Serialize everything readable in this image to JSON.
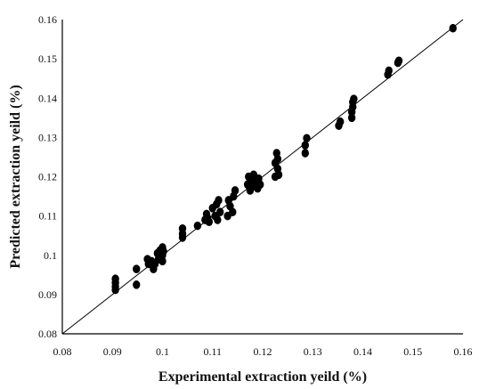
{
  "chart_data": {
    "type": "scatter",
    "title": "",
    "xlabel": "Experimental extraction yeild (%)",
    "ylabel": "Predicted extraction yeild (%)",
    "xlim": [
      0.08,
      0.16
    ],
    "ylim": [
      0.08,
      0.16
    ],
    "xticks": [
      "0.08",
      "0.09",
      "0.1",
      "0.11",
      "0.12",
      "0.13",
      "0.14",
      "0.15",
      "0.16"
    ],
    "yticks": [
      "0.08",
      "0.09",
      "0.1",
      "0.11",
      "0.12",
      "0.13",
      "0.14",
      "0.15",
      "0.16"
    ],
    "grid": false,
    "legend": "none",
    "reference_line": {
      "x": [
        0.08,
        0.16
      ],
      "y": [
        0.08,
        0.16
      ]
    },
    "marker_color": "#000000",
    "points": [
      {
        "x": 0.0906,
        "y": 0.092
      },
      {
        "x": 0.0906,
        "y": 0.093
      },
      {
        "x": 0.0906,
        "y": 0.094
      },
      {
        "x": 0.0906,
        "y": 0.0912
      },
      {
        "x": 0.0948,
        "y": 0.0965
      },
      {
        "x": 0.0948,
        "y": 0.0925
      },
      {
        "x": 0.097,
        "y": 0.099
      },
      {
        "x": 0.0972,
        "y": 0.0978
      },
      {
        "x": 0.0978,
        "y": 0.0985
      },
      {
        "x": 0.0982,
        "y": 0.0965
      },
      {
        "x": 0.0985,
        "y": 0.0978
      },
      {
        "x": 0.099,
        "y": 0.1005
      },
      {
        "x": 0.0992,
        "y": 0.099
      },
      {
        "x": 0.0995,
        "y": 0.1012
      },
      {
        "x": 0.1,
        "y": 0.1
      },
      {
        "x": 0.1,
        "y": 0.102
      },
      {
        "x": 0.1,
        "y": 0.0985
      },
      {
        "x": 0.1002,
        "y": 0.101
      },
      {
        "x": 0.104,
        "y": 0.1055
      },
      {
        "x": 0.104,
        "y": 0.1068
      },
      {
        "x": 0.104,
        "y": 0.1045
      },
      {
        "x": 0.107,
        "y": 0.1075
      },
      {
        "x": 0.1085,
        "y": 0.109
      },
      {
        "x": 0.1088,
        "y": 0.1105
      },
      {
        "x": 0.109,
        "y": 0.1095
      },
      {
        "x": 0.1093,
        "y": 0.1085
      },
      {
        "x": 0.11,
        "y": 0.112
      },
      {
        "x": 0.1105,
        "y": 0.11
      },
      {
        "x": 0.1108,
        "y": 0.113
      },
      {
        "x": 0.111,
        "y": 0.109
      },
      {
        "x": 0.1112,
        "y": 0.114
      },
      {
        "x": 0.1115,
        "y": 0.111
      },
      {
        "x": 0.113,
        "y": 0.11
      },
      {
        "x": 0.1132,
        "y": 0.114
      },
      {
        "x": 0.1135,
        "y": 0.1125
      },
      {
        "x": 0.114,
        "y": 0.111
      },
      {
        "x": 0.1142,
        "y": 0.115
      },
      {
        "x": 0.1145,
        "y": 0.1165
      },
      {
        "x": 0.117,
        "y": 0.118
      },
      {
        "x": 0.1172,
        "y": 0.12
      },
      {
        "x": 0.1175,
        "y": 0.1165
      },
      {
        "x": 0.1178,
        "y": 0.119
      },
      {
        "x": 0.118,
        "y": 0.1175
      },
      {
        "x": 0.1182,
        "y": 0.1205
      },
      {
        "x": 0.1185,
        "y": 0.1185
      },
      {
        "x": 0.119,
        "y": 0.117
      },
      {
        "x": 0.1192,
        "y": 0.1195
      },
      {
        "x": 0.1195,
        "y": 0.118
      },
      {
        "x": 0.1225,
        "y": 0.12
      },
      {
        "x": 0.1225,
        "y": 0.1235
      },
      {
        "x": 0.1228,
        "y": 0.126
      },
      {
        "x": 0.123,
        "y": 0.1245
      },
      {
        "x": 0.123,
        "y": 0.122
      },
      {
        "x": 0.1232,
        "y": 0.1205
      },
      {
        "x": 0.1285,
        "y": 0.126
      },
      {
        "x": 0.1285,
        "y": 0.128
      },
      {
        "x": 0.1288,
        "y": 0.1298
      },
      {
        "x": 0.1352,
        "y": 0.133
      },
      {
        "x": 0.1355,
        "y": 0.134
      },
      {
        "x": 0.1378,
        "y": 0.135
      },
      {
        "x": 0.1378,
        "y": 0.1365
      },
      {
        "x": 0.138,
        "y": 0.1378
      },
      {
        "x": 0.138,
        "y": 0.139
      },
      {
        "x": 0.1382,
        "y": 0.1398
      },
      {
        "x": 0.145,
        "y": 0.146
      },
      {
        "x": 0.1452,
        "y": 0.147
      },
      {
        "x": 0.147,
        "y": 0.149
      },
      {
        "x": 0.1472,
        "y": 0.1495
      },
      {
        "x": 0.158,
        "y": 0.1578
      }
    ]
  }
}
